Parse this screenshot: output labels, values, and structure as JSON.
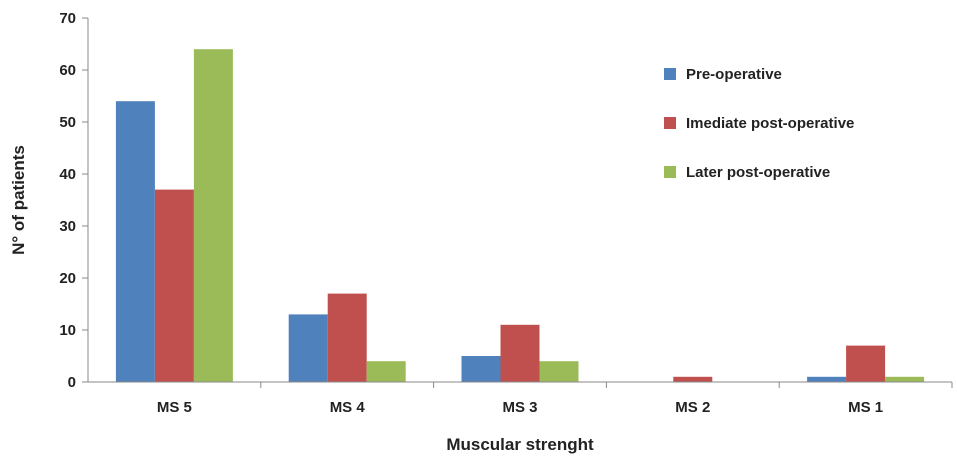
{
  "chart_data": {
    "type": "bar",
    "title": "",
    "xlabel": "Muscular strenght",
    "ylabel": "N° of patients",
    "ylim": [
      0,
      70
    ],
    "yticks": [
      0,
      10,
      20,
      30,
      40,
      50,
      60,
      70
    ],
    "categories": [
      "MS 5",
      "MS 4",
      "MS 3",
      "MS 2",
      "MS 1"
    ],
    "series": [
      {
        "name": "Pre-operative",
        "color": "#4f81bd",
        "values": [
          54,
          13,
          5,
          0,
          1
        ]
      },
      {
        "name": "Imediate post-operative",
        "color": "#c0504d",
        "values": [
          37,
          17,
          11,
          1,
          7
        ]
      },
      {
        "name": "Later post-operative",
        "color": "#9bbb59",
        "values": [
          64,
          4,
          4,
          0,
          1
        ]
      }
    ],
    "grid": false,
    "legend_position": "top-right"
  }
}
